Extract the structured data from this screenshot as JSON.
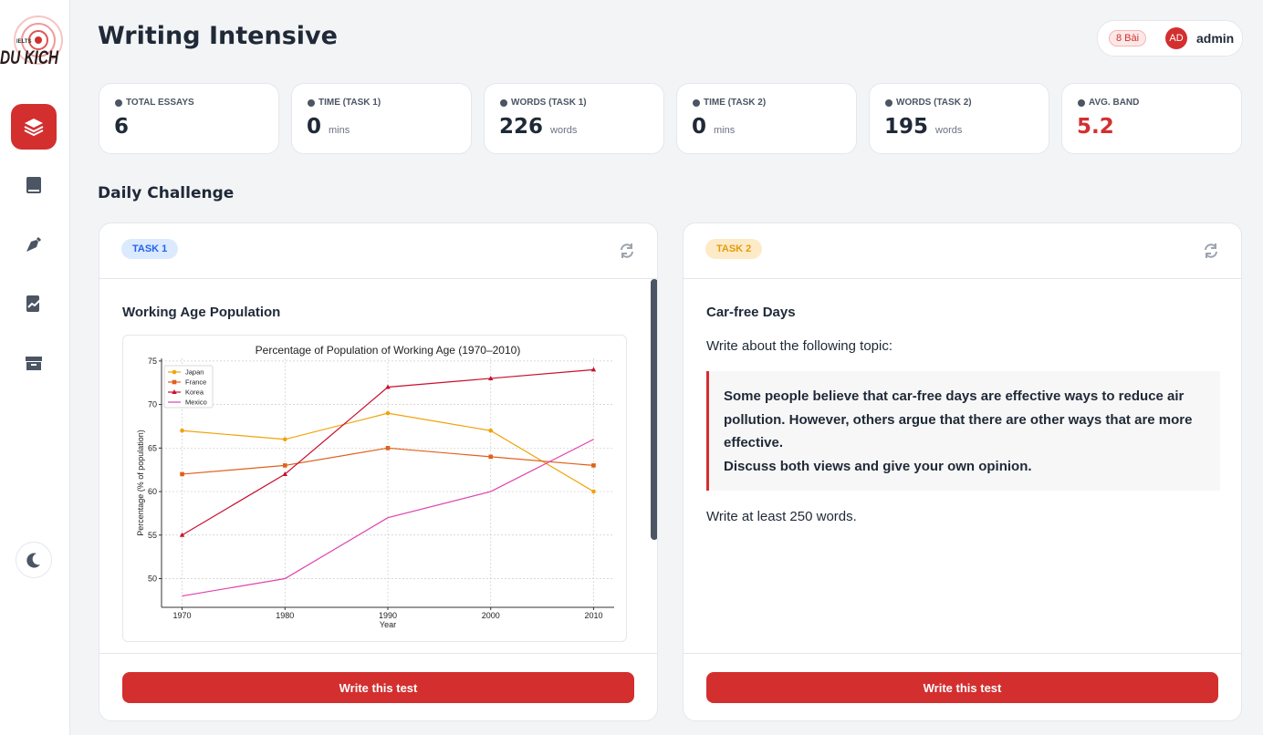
{
  "sidebar": {
    "logo_small": "IELTS",
    "logo": "DU KICH"
  },
  "header": {
    "title": "Writing Intensive",
    "badge": "8 Bài",
    "avatar": "AD",
    "user": "admin"
  },
  "stats": [
    {
      "label": "TOTAL ESSAYS",
      "value": 6
    },
    {
      "label": "TIME (TASK 1)",
      "value": 0,
      "unit": "mins"
    },
    {
      "label": "WORDS (TASK 1)",
      "value": 226,
      "unit": "words"
    },
    {
      "label": "TIME (TASK 2)",
      "value": 0,
      "unit": "mins"
    },
    {
      "label": "WORDS (TASK 2)",
      "value": 195,
      "unit": "words"
    },
    {
      "label": "AVG. BAND",
      "value": 5.2
    }
  ],
  "section_title": "Daily Challenge",
  "task1": {
    "tag": "TASK 1",
    "title": "Working Age Population",
    "button": "Write this test"
  },
  "task2": {
    "tag": "TASK 2",
    "title": "Car-free Days",
    "intro": "Write about the following topic:",
    "prompt": [
      "Some people believe that car-free days are effective ways to reduce air pollution. However, others argue that there are other ways that are more effective.",
      "Discuss both views and give your own opinion."
    ],
    "note": "Write at least 250 words.",
    "button": "Write this test"
  },
  "chart_data": {
    "type": "line",
    "title": "Percentage of Population of Working Age (1970–2010)",
    "x_label": "Year",
    "y_label": "Percentage (% of population)",
    "x": [
      1970,
      1980,
      1990,
      2000,
      2010
    ],
    "series": [
      {
        "name": "Japan",
        "color": "#f0a30a",
        "marker": "circle",
        "values": [
          67,
          66,
          69,
          67,
          60
        ]
      },
      {
        "name": "France",
        "color": "#e0601c",
        "marker": "square",
        "values": [
          62,
          63,
          65,
          64,
          63
        ]
      },
      {
        "name": "Korea",
        "color": "#c8102e",
        "marker": "triangle",
        "values": [
          55,
          62,
          72,
          73,
          74
        ]
      },
      {
        "name": "Mexico",
        "color": "#e040b0",
        "marker": "none",
        "values": [
          48,
          50,
          57,
          60,
          66
        ]
      }
    ],
    "xlim": [
      1968,
      2012
    ],
    "xticks": [
      1970,
      1980,
      1990,
      2000,
      2010
    ],
    "ylim": [
      46.7,
      75.3
    ],
    "yticks": [
      50,
      55,
      60,
      65,
      70,
      75
    ],
    "grid": true,
    "legend": "upper left"
  }
}
